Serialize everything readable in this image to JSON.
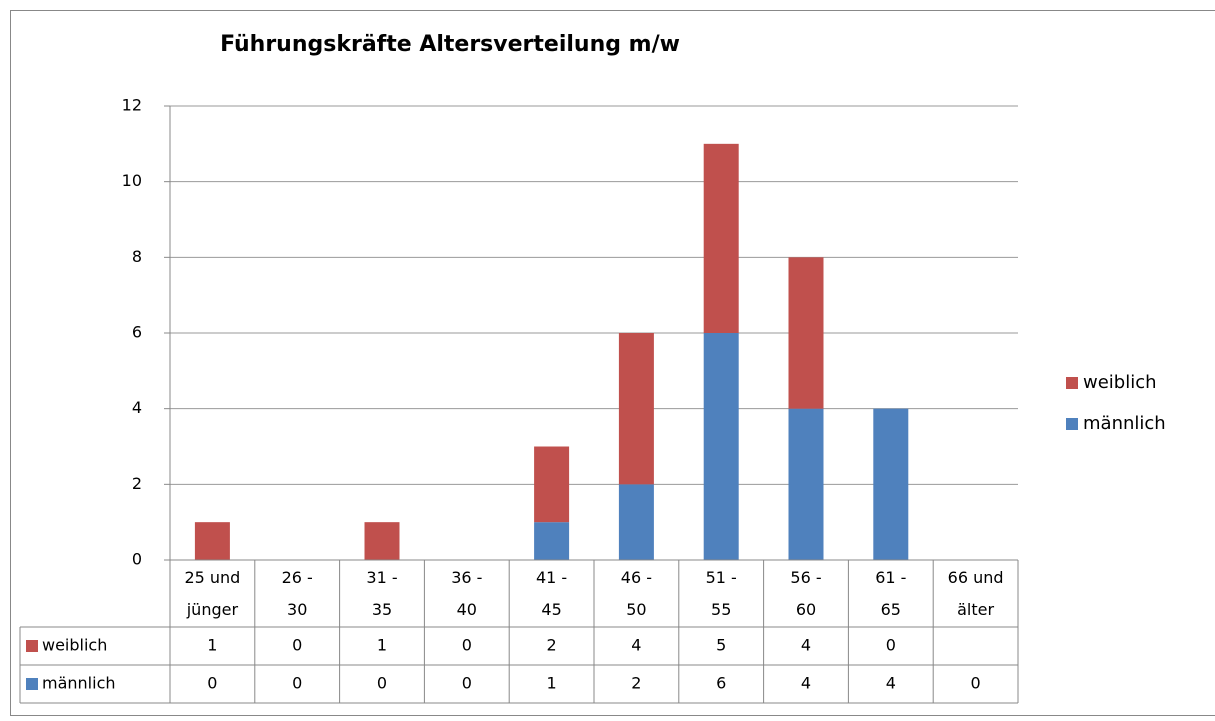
{
  "chart_data": {
    "type": "bar",
    "stacked": true,
    "title": "Führungskräfte Altersverteilung m/w",
    "categories": [
      "25 und jünger",
      "26 - 30",
      "31 - 35",
      "36 - 40",
      "41 - 45",
      "46 - 50",
      "51 - 55",
      "56 - 60",
      "61 - 65",
      "66 und älter"
    ],
    "series": [
      {
        "name": "männlich",
        "color": "#4f81bd",
        "values": [
          0,
          0,
          0,
          0,
          1,
          2,
          6,
          4,
          4,
          0
        ]
      },
      {
        "name": "weiblich",
        "color": "#c0504d",
        "values": [
          1,
          0,
          1,
          0,
          2,
          4,
          5,
          4,
          0,
          null
        ]
      }
    ],
    "ylim": [
      0,
      12
    ],
    "yticks": [
      0,
      2,
      4,
      6,
      8,
      10,
      12
    ],
    "grid": true,
    "legend": "right",
    "data_table": true
  }
}
